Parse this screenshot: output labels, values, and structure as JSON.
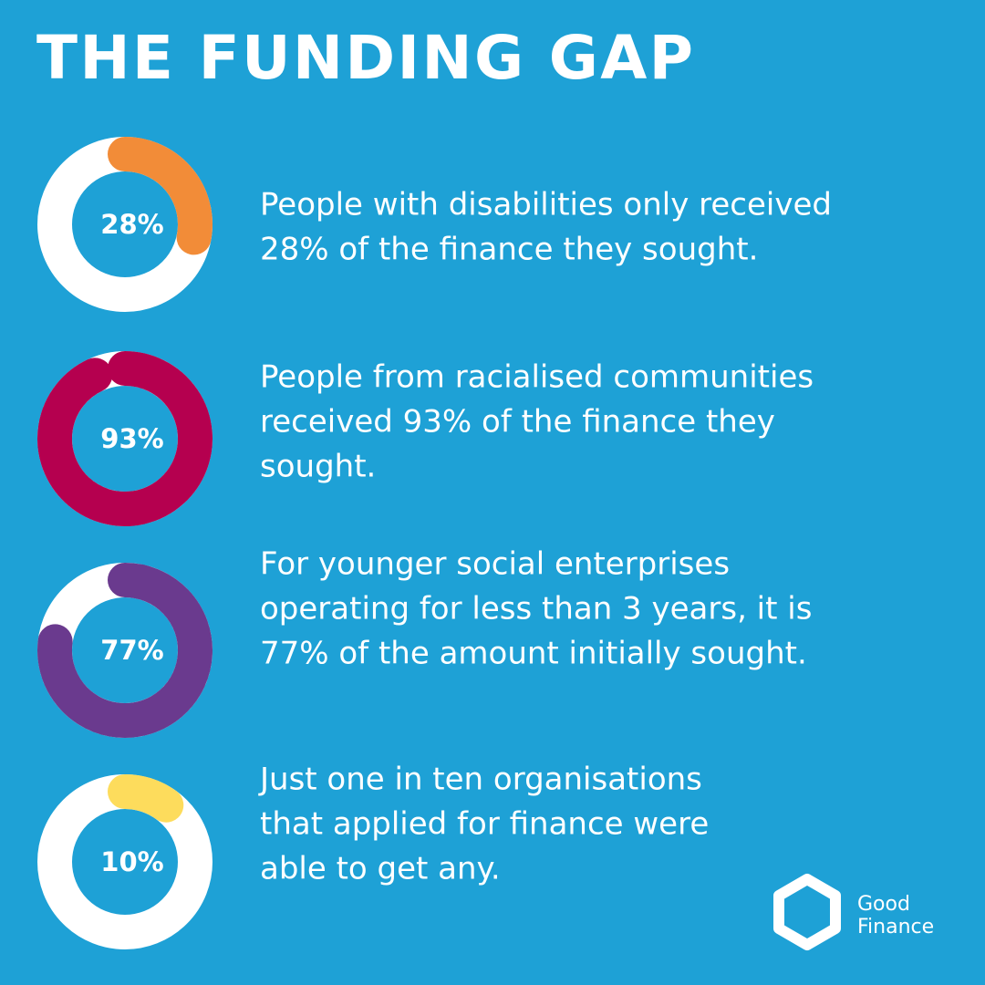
{
  "title": "THE FUNDING GAP",
  "chart_data": [
    {
      "type": "donut",
      "values": [
        28
      ],
      "value_labels": [
        "28%"
      ],
      "color": "#f28c38",
      "caption": [
        "People with disabilities only received",
        "28% of the finance they sought."
      ]
    },
    {
      "type": "donut",
      "values": [
        93
      ],
      "value_labels": [
        "93%"
      ],
      "color": "#b5004f",
      "caption": [
        "People from racialised communities",
        "received 93% of the finance they",
        "sought."
      ]
    },
    {
      "type": "donut",
      "values": [
        77
      ],
      "value_labels": [
        "77%"
      ],
      "color": "#6a3a8e",
      "caption": [
        "For younger social enterprises",
        "operating for less than 3 years, it is",
        "77% of the amount initially sought."
      ]
    },
    {
      "type": "donut",
      "values": [
        10
      ],
      "value_labels": [
        "10%"
      ],
      "color": "#fddc5c",
      "caption": [
        "Just one in ten organisations",
        "that applied for finance were",
        "able to get any."
      ]
    }
  ],
  "logo": {
    "line1": "Good",
    "line2": "Finance"
  }
}
